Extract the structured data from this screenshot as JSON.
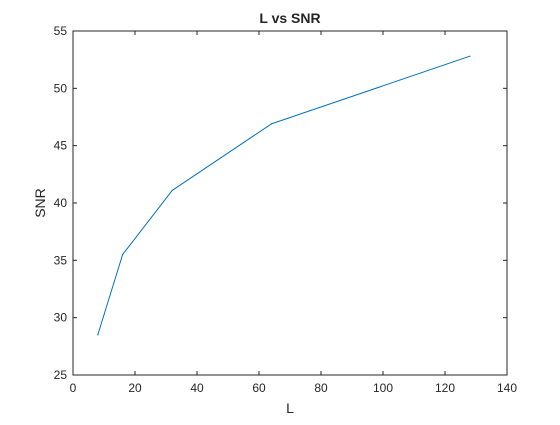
{
  "chart_data": {
    "type": "line",
    "title": "L vs SNR",
    "xlabel": "L",
    "ylabel": "SNR",
    "xlim": [
      0,
      140
    ],
    "ylim": [
      25,
      55
    ],
    "xticks": [
      0,
      20,
      40,
      60,
      80,
      100,
      120,
      140
    ],
    "yticks": [
      25,
      30,
      35,
      40,
      45,
      50,
      55
    ],
    "grid": false,
    "series": [
      {
        "x": [
          8,
          16,
          32,
          64,
          128
        ],
        "y": [
          28.5,
          35.5,
          41.1,
          46.9,
          52.8
        ],
        "color": "#0072BD"
      }
    ]
  }
}
